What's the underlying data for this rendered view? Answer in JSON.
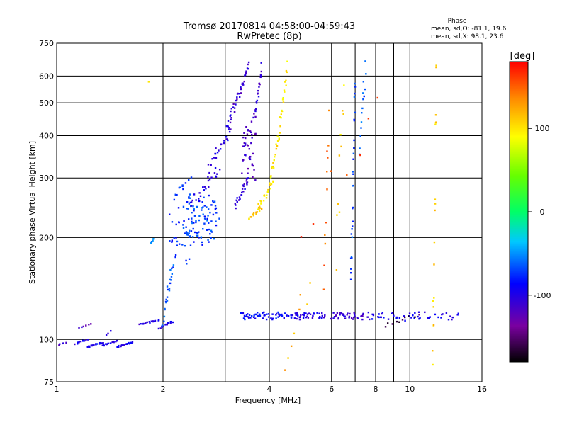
{
  "chart_data": {
    "type": "scatter",
    "title": "Tromsø 20170814 04:58:00-04:59:43",
    "subtitle": "RwPretec (8p)",
    "xlabel": "Frequency [MHz]",
    "ylabel": "Stationary phase Virtual Height [km]",
    "x_scale": "log",
    "y_scale": "log",
    "xlim": [
      1,
      16
    ],
    "ylim": [
      75,
      750
    ],
    "x_ticks": [
      1,
      2,
      4,
      6,
      8,
      10,
      16
    ],
    "x_tick_labels": [
      "1",
      "2",
      "4",
      "6",
      "8",
      "10",
      "16"
    ],
    "y_ticks": [
      75,
      100,
      200,
      300,
      400,
      500,
      600,
      750
    ],
    "y_tick_labels": [
      "75",
      "100",
      "200",
      "300",
      "400",
      "500",
      "600",
      "750"
    ],
    "grid": true,
    "stats": {
      "header": "Phase",
      "o_line": "mean, sd,O:  -81.1, 19.6",
      "x_line": "mean, sd,X:  98.1, 23.6"
    },
    "colorbar": {
      "label": "[deg]",
      "range": [
        -180,
        180
      ],
      "ticks": [
        100,
        0,
        -100
      ],
      "tick_labels": [
        "100",
        "0",
        "-100"
      ]
    },
    "series": [
      {
        "x_range": [
          1.0,
          1.06
        ],
        "y_range": [
          96,
          98
        ],
        "phase": -110,
        "n": 6
      },
      {
        "x_range": [
          1.13,
          1.22
        ],
        "y_range": [
          97,
          100
        ],
        "phase": -100,
        "n": 10
      },
      {
        "x_range": [
          1.22,
          1.35
        ],
        "y_range": [
          95,
          98
        ],
        "phase": -90,
        "n": 18
      },
      {
        "x_range": [
          1.35,
          1.48
        ],
        "y_range": [
          96,
          99
        ],
        "phase": -100,
        "n": 16
      },
      {
        "x_range": [
          1.48,
          1.64
        ],
        "y_range": [
          95,
          98
        ],
        "phase": -95,
        "n": 18
      },
      {
        "x_range": [
          1.16,
          1.25
        ],
        "y_range": [
          108,
          111
        ],
        "phase": -115,
        "n": 6
      },
      {
        "x_range": [
          1.38,
          1.42
        ],
        "y_range": [
          103,
          106
        ],
        "phase": -110,
        "n": 3
      },
      {
        "x_range": [
          1.72,
          1.95
        ],
        "y_range": [
          111,
          114
        ],
        "phase": -100,
        "n": 16
      },
      {
        "x_range": [
          1.95,
          2.12
        ],
        "y_range": [
          108,
          113
        ],
        "phase": -100,
        "n": 12
      },
      {
        "x_range": [
          1.85,
          1.88
        ],
        "y_range": [
          193,
          198
        ],
        "phase": -60,
        "n": 4
      },
      {
        "x_range": [
          2.0,
          2.14
        ],
        "y_range": [
          112,
          170
        ],
        "phase": -65,
        "n": 24
      },
      {
        "x_range": [
          2.1,
          2.4
        ],
        "y_range": [
          160,
          295
        ],
        "phase": -75,
        "n": 40
      },
      {
        "x_range": [
          2.3,
          2.85
        ],
        "y_range": [
          190,
          260
        ],
        "phase": -70,
        "n": 90
      },
      {
        "x_range": [
          2.4,
          2.9
        ],
        "y_range": [
          250,
          320
        ],
        "phase": -100,
        "n": 24
      },
      {
        "x_range": [
          2.7,
          3.1
        ],
        "y_range": [
          320,
          420
        ],
        "phase": -105,
        "n": 24
      },
      {
        "x_range": [
          3.05,
          3.35
        ],
        "y_range": [
          430,
          560
        ],
        "phase": -110,
        "n": 28
      },
      {
        "x_range": [
          3.35,
          3.5
        ],
        "y_range": [
          560,
          650
        ],
        "phase": -110,
        "n": 12
      },
      {
        "x_range": [
          3.2,
          3.5
        ],
        "y_range": [
          245,
          300
        ],
        "phase": -105,
        "n": 24
      },
      {
        "x_range": [
          3.35,
          3.65
        ],
        "y_range": [
          300,
          450
        ],
        "phase": -115,
        "n": 45
      },
      {
        "x_range": [
          3.65,
          3.8
        ],
        "y_range": [
          450,
          640
        ],
        "phase": -110,
        "n": 20
      },
      {
        "x_range": [
          3.5,
          3.8
        ],
        "y_range": [
          225,
          245
        ],
        "phase": 110,
        "n": 14
      },
      {
        "x_range": [
          3.7,
          4.1
        ],
        "y_range": [
          245,
          290
        ],
        "phase": 100,
        "n": 22
      },
      {
        "x_range": [
          4.0,
          4.25
        ],
        "y_range": [
          290,
          400
        ],
        "phase": 98,
        "n": 18
      },
      {
        "x_range": [
          4.25,
          4.5
        ],
        "y_range": [
          400,
          640
        ],
        "phase": 95,
        "n": 20
      },
      {
        "x_range": [
          3.3,
          4.7
        ],
        "y_range": [
          115,
          120
        ],
        "phase": -90,
        "n": 60
      },
      {
        "x_range": [
          4.7,
          5.8
        ],
        "y_range": [
          115,
          120
        ],
        "phase": -100,
        "n": 40
      },
      {
        "x_range": [
          6.0,
          7.4
        ],
        "y_range": [
          115,
          120
        ],
        "phase": -110,
        "n": 40
      },
      {
        "x_range": [
          7.4,
          13.5
        ],
        "y_range": [
          114,
          120
        ],
        "phase": -95,
        "n": 50
      },
      {
        "x_range": [
          6.8,
          7.0
        ],
        "y_range": [
          150,
          560
        ],
        "phase": -70,
        "n": 28
      },
      {
        "x_range": [
          7.2,
          7.5
        ],
        "y_range": [
          340,
          650
        ],
        "phase": -65,
        "n": 14
      },
      {
        "x_range": [
          11.6,
          11.9
        ],
        "y_range": [
          80,
          620
        ],
        "phase": 110,
        "n": 18
      },
      {
        "x_range": [
          5.7,
          5.9
        ],
        "y_range": [
          150,
          480
        ],
        "phase": 150,
        "n": 10
      },
      {
        "x_range": [
          6.2,
          6.5
        ],
        "y_range": [
          180,
          610
        ],
        "phase": 105,
        "n": 10
      },
      {
        "x_range": [
          4.4,
          5.2
        ],
        "y_range": [
          80,
          150
        ],
        "phase": 120,
        "n": 8
      },
      {
        "x_range": [
          5.0,
          8.0
        ],
        "y_range": [
          180,
          520
        ],
        "phase": 160,
        "n": 8
      },
      {
        "x_range": [
          8.5,
          10.5
        ],
        "y_range": [
          110,
          118
        ],
        "phase": -160,
        "n": 10
      },
      {
        "x_range": [
          1.8,
          1.84
        ],
        "y_range": [
          575,
          580
        ],
        "phase": 90,
        "n": 1
      }
    ]
  }
}
